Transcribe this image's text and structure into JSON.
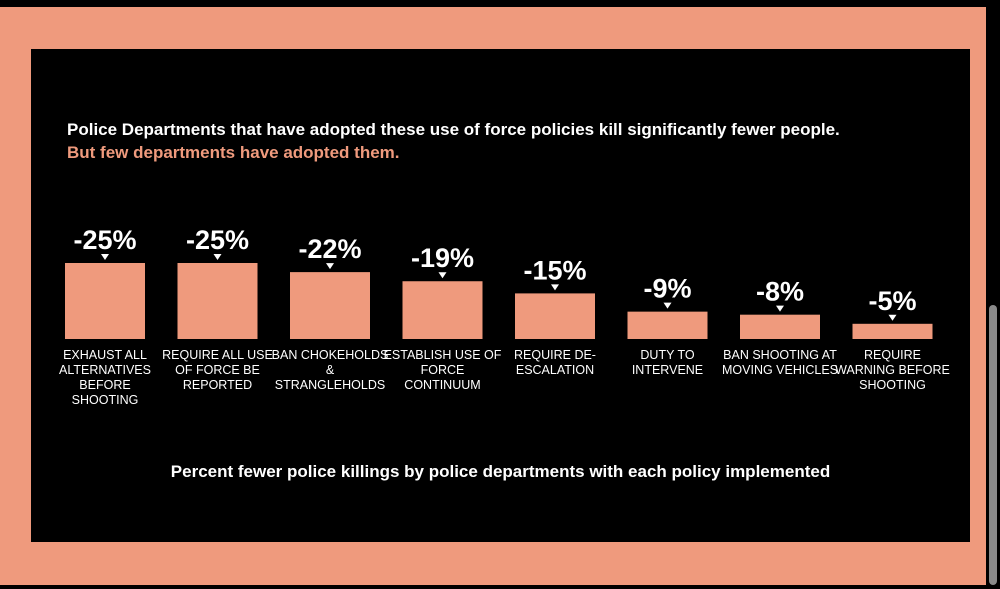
{
  "header": {
    "headline_1": "Police Departments that have adopted these use of force policies kill significantly fewer people.",
    "headline_2": "But few departments have adopted them."
  },
  "colors": {
    "accent": "#EF9A7D",
    "background": "#000000",
    "text": "#FFFFFF"
  },
  "chart_data": {
    "type": "bar",
    "categories": [
      "EXHAUST ALL ALTERNATIVES BEFORE SHOOTING",
      "REQUIRE ALL USE OF FORCE BE REPORTED",
      "BAN CHOKEHOLDS & STRANGLEHOLDS",
      "ESTABLISH USE OF FORCE CONTINUUM",
      "REQUIRE DE-ESCALATION",
      "DUTY TO INTERVENE",
      "BAN SHOOTING AT MOVING VEHICLES",
      "REQUIRE WARNING BEFORE SHOOTING"
    ],
    "values": [
      -25,
      -25,
      -22,
      -19,
      -15,
      -9,
      -8,
      -5
    ],
    "data_labels": [
      "-25%",
      "-25%",
      "-22%",
      "-19%",
      "-15%",
      "-9%",
      "-8%",
      "-5%"
    ],
    "unit": "%",
    "xlabel": "Percent fewer police killings by police departments with each policy implemented",
    "ylabel": "",
    "legend": "none",
    "grid": false
  }
}
